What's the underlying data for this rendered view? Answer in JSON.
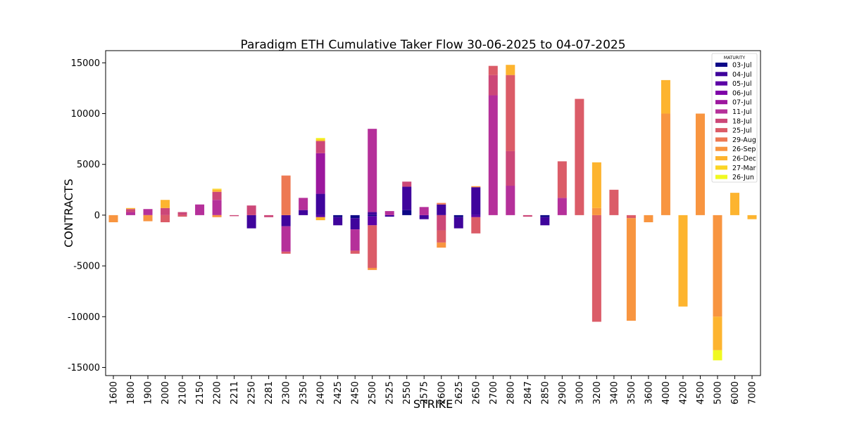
{
  "chart_data": {
    "type": "bar",
    "stacked": true,
    "title": "Paradigm ETH Cumulative Taker Flow 30-06-2025 to 04-07-2025",
    "xlabel": "STRIKE",
    "ylabel": "CONTRACTS",
    "ylim": [
      -15800,
      16200
    ],
    "yticks": [
      -15000,
      -10000,
      -5000,
      0,
      5000,
      10000,
      15000
    ],
    "legend_title": "MATURITY",
    "legend_position": "top-right",
    "grid": false,
    "categories": [
      "1600",
      "1800",
      "1900",
      "2000",
      "2100",
      "2150",
      "2200",
      "2211",
      "2250",
      "2281",
      "2300",
      "2350",
      "2400",
      "2425",
      "2450",
      "2500",
      "2525",
      "2550",
      "2575",
      "2600",
      "2625",
      "2650",
      "2700",
      "2800",
      "2847",
      "2850",
      "2900",
      "3000",
      "3200",
      "3400",
      "3500",
      "3600",
      "4000",
      "4200",
      "4500",
      "5000",
      "6000",
      "7000"
    ],
    "series": [
      {
        "name": "03-Jul",
        "color": "#0d0887",
        "values": [
          0,
          0,
          0,
          0,
          0,
          0,
          0,
          0,
          0,
          0,
          0,
          0,
          0,
          -200,
          -300,
          -100,
          0,
          500,
          0,
          0,
          -200,
          0,
          0,
          0,
          0,
          -200,
          0,
          0,
          0,
          0,
          0,
          0,
          0,
          0,
          0,
          0,
          0,
          0
        ]
      },
      {
        "name": "04-Jul",
        "color": "#3f049c",
        "values": [
          0,
          0,
          0,
          0,
          0,
          0,
          0,
          0,
          -1300,
          0,
          -1100,
          500,
          2100,
          -800,
          -1100,
          300,
          -150,
          2300,
          -400,
          1050,
          -1100,
          2750,
          0,
          0,
          0,
          -800,
          0,
          0,
          0,
          0,
          0,
          0,
          0,
          0,
          0,
          0,
          0,
          0
        ]
      },
      {
        "name": "05-Jul",
        "color": "#5c01a6",
        "values": [
          0,
          0,
          0,
          0,
          0,
          0,
          0,
          0,
          0,
          0,
          0,
          0,
          -200,
          0,
          0,
          -900,
          0,
          0,
          0,
          0,
          0,
          -200,
          0,
          0,
          0,
          0,
          0,
          0,
          0,
          0,
          0,
          0,
          0,
          0,
          0,
          0,
          0,
          0
        ]
      },
      {
        "name": "06-Jul",
        "color": "#7e03a8",
        "values": [
          0,
          0,
          0,
          0,
          0,
          0,
          0,
          0,
          0,
          0,
          0,
          0,
          0,
          0,
          0,
          0,
          0,
          0,
          0,
          0,
          0,
          0,
          0,
          0,
          0,
          0,
          0,
          0,
          0,
          0,
          0,
          0,
          0,
          0,
          0,
          0,
          0,
          0
        ]
      },
      {
        "name": "07-Jul",
        "color": "#9c179e",
        "values": [
          0,
          0,
          0,
          0,
          0,
          0,
          0,
          0,
          0,
          0,
          0,
          0,
          4000,
          0,
          0,
          0,
          0,
          0,
          0,
          0,
          0,
          0,
          0,
          0,
          0,
          0,
          0,
          0,
          0,
          0,
          0,
          0,
          0,
          0,
          0,
          0,
          0,
          0
        ]
      },
      {
        "name": "11-Jul",
        "color": "#b5309a",
        "values": [
          0,
          300,
          600,
          0,
          0,
          1050,
          1500,
          0,
          0,
          0,
          -2500,
          1200,
          0,
          0,
          -2100,
          8200,
          400,
          0,
          800,
          0,
          0,
          0,
          11800,
          2900,
          0,
          0,
          1700,
          0,
          0,
          0,
          0,
          0,
          0,
          0,
          0,
          0,
          0,
          0
        ]
      },
      {
        "name": "18-Jul",
        "color": "#cc4778",
        "values": [
          0,
          300,
          0,
          700,
          300,
          0,
          800,
          -100,
          950,
          -200,
          0,
          0,
          1200,
          0,
          0,
          0,
          0,
          500,
          0,
          -1500,
          0,
          0,
          2000,
          3400,
          -150,
          0,
          0,
          0,
          0,
          0,
          0,
          0,
          0,
          0,
          0,
          0,
          0,
          0
        ]
      },
      {
        "name": "25-Jul",
        "color": "#db5c68",
        "values": [
          0,
          0,
          0,
          -700,
          -150,
          0,
          0,
          0,
          0,
          0,
          -200,
          0,
          0,
          0,
          -300,
          -4200,
          0,
          0,
          0,
          -1200,
          0,
          -1600,
          900,
          7500,
          0,
          0,
          3600,
          11450,
          -10500,
          2500,
          -300,
          0,
          0,
          0,
          0,
          0,
          0,
          0
        ]
      },
      {
        "name": "29-Aug",
        "color": "#ed7953",
        "values": [
          0,
          0,
          0,
          0,
          0,
          0,
          0,
          0,
          0,
          0,
          3900,
          0,
          0,
          0,
          0,
          0,
          0,
          0,
          0,
          150,
          0,
          0,
          0,
          0,
          0,
          0,
          0,
          0,
          0,
          0,
          0,
          0,
          0,
          0,
          0,
          0,
          0,
          0
        ]
      },
      {
        "name": "26-Sep",
        "color": "#f89540",
        "values": [
          -700,
          0,
          -600,
          0,
          0,
          0,
          -200,
          0,
          0,
          0,
          0,
          0,
          0,
          0,
          0,
          -200,
          0,
          0,
          0,
          -500,
          0,
          100,
          0,
          0,
          0,
          0,
          0,
          0,
          700,
          0,
          -10100,
          -700,
          10000,
          0,
          10000,
          -10000,
          0,
          0
        ]
      },
      {
        "name": "26-Dec",
        "color": "#fdb42f",
        "values": [
          0,
          100,
          0,
          800,
          0,
          0,
          200,
          0,
          0,
          0,
          0,
          0,
          -300,
          0,
          0,
          0,
          0,
          0,
          0,
          0,
          0,
          0,
          0,
          1000,
          0,
          0,
          0,
          0,
          4500,
          0,
          0,
          0,
          3300,
          -9000,
          0,
          -3300,
          2200,
          -400
        ]
      },
      {
        "name": "27-Mar",
        "color": "#fbd524",
        "values": [
          0,
          0,
          0,
          0,
          0,
          0,
          100,
          0,
          0,
          0,
          0,
          0,
          200,
          0,
          0,
          0,
          0,
          0,
          0,
          0,
          0,
          0,
          0,
          0,
          0,
          0,
          0,
          0,
          0,
          0,
          0,
          0,
          0,
          0,
          0,
          0,
          0,
          0
        ]
      },
      {
        "name": "26-Jun",
        "color": "#f0f921",
        "values": [
          0,
          0,
          0,
          0,
          0,
          0,
          0,
          0,
          0,
          0,
          0,
          0,
          100,
          0,
          0,
          0,
          0,
          0,
          0,
          0,
          0,
          0,
          0,
          0,
          0,
          0,
          0,
          0,
          0,
          0,
          0,
          0,
          0,
          0,
          0,
          -1000,
          0,
          0
        ]
      }
    ]
  }
}
